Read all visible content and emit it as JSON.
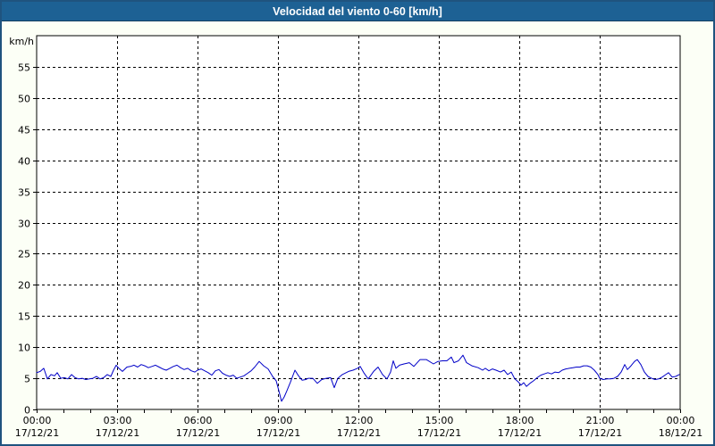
{
  "window": {
    "title": "Velocidad del viento 0-60 [km/h]"
  },
  "colors": {
    "titlebar_bg": "#1d6194",
    "titlebar_text": "#ffffff",
    "frame_border": "#1f537f",
    "page_bg": "#fcfff6",
    "plot_bg": "#ffffff",
    "grid_and_axis": "#000000",
    "tick_label_text": "#000000",
    "series_line": "#0000c8"
  },
  "chart_data": {
    "type": "line",
    "title": "Velocidad del viento 0-60 [km/h]",
    "xlabel": "",
    "ylabel": "km/h",
    "ylim": [
      0,
      60
    ],
    "ytick_step": 5,
    "yticks": [
      0,
      5,
      10,
      15,
      20,
      25,
      30,
      35,
      40,
      45,
      50,
      55
    ],
    "grid": "dashed",
    "legend_position": "none",
    "x_unit": "minutes_from_start",
    "xlim": [
      0,
      1440
    ],
    "x_minor_tick_every_minutes": 60,
    "x_major_ticks": [
      {
        "minutes": 0,
        "time": "00:00",
        "date": "17/12/21"
      },
      {
        "minutes": 180,
        "time": "03:00",
        "date": "17/12/21"
      },
      {
        "minutes": 360,
        "time": "06:00",
        "date": "17/12/21"
      },
      {
        "minutes": 540,
        "time": "09:00",
        "date": "17/12/21"
      },
      {
        "minutes": 720,
        "time": "12:00",
        "date": "17/12/21"
      },
      {
        "minutes": 900,
        "time": "15:00",
        "date": "17/12/21"
      },
      {
        "minutes": 1080,
        "time": "18:00",
        "date": "17/12/21"
      },
      {
        "minutes": 1260,
        "time": "21:00",
        "date": "17/12/21"
      },
      {
        "minutes": 1440,
        "time": "00:00",
        "date": "18/12/21"
      }
    ],
    "series": [
      {
        "name": "Velocidad del viento",
        "color": "#0000c8",
        "points": [
          [
            0,
            5.9
          ],
          [
            8,
            6.1
          ],
          [
            16,
            6.6
          ],
          [
            24,
            4.9
          ],
          [
            32,
            5.6
          ],
          [
            40,
            5.4
          ],
          [
            46,
            5.9
          ],
          [
            54,
            5.0
          ],
          [
            62,
            5.1
          ],
          [
            70,
            4.9
          ],
          [
            78,
            5.6
          ],
          [
            86,
            5.1
          ],
          [
            94,
            4.9
          ],
          [
            102,
            5.0
          ],
          [
            110,
            4.8
          ],
          [
            118,
            4.9
          ],
          [
            126,
            5.0
          ],
          [
            134,
            5.3
          ],
          [
            142,
            4.9
          ],
          [
            150,
            5.1
          ],
          [
            158,
            5.6
          ],
          [
            166,
            5.3
          ],
          [
            172,
            6.3
          ],
          [
            178,
            7.1
          ],
          [
            184,
            6.6
          ],
          [
            192,
            6.1
          ],
          [
            202,
            6.8
          ],
          [
            210,
            6.9
          ],
          [
            218,
            7.1
          ],
          [
            226,
            6.8
          ],
          [
            234,
            7.2
          ],
          [
            242,
            7.0
          ],
          [
            250,
            6.7
          ],
          [
            258,
            6.9
          ],
          [
            266,
            7.1
          ],
          [
            274,
            6.8
          ],
          [
            282,
            6.5
          ],
          [
            290,
            6.3
          ],
          [
            298,
            6.6
          ],
          [
            306,
            6.9
          ],
          [
            314,
            7.1
          ],
          [
            322,
            6.7
          ],
          [
            330,
            6.4
          ],
          [
            338,
            6.6
          ],
          [
            346,
            6.2
          ],
          [
            354,
            6.0
          ],
          [
            360,
            6.3
          ],
          [
            368,
            6.5
          ],
          [
            376,
            6.2
          ],
          [
            384,
            5.9
          ],
          [
            392,
            5.5
          ],
          [
            400,
            6.2
          ],
          [
            408,
            6.4
          ],
          [
            416,
            5.8
          ],
          [
            424,
            5.5
          ],
          [
            432,
            5.3
          ],
          [
            440,
            5.5
          ],
          [
            448,
            5.0
          ],
          [
            456,
            5.2
          ],
          [
            464,
            5.4
          ],
          [
            472,
            5.8
          ],
          [
            480,
            6.2
          ],
          [
            488,
            6.8
          ],
          [
            498,
            7.7
          ],
          [
            508,
            7.0
          ],
          [
            518,
            6.5
          ],
          [
            528,
            5.3
          ],
          [
            536,
            4.6
          ],
          [
            542,
            3.0
          ],
          [
            548,
            1.3
          ],
          [
            554,
            2.0
          ],
          [
            560,
            3.0
          ],
          [
            568,
            4.4
          ],
          [
            578,
            6.3
          ],
          [
            586,
            5.4
          ],
          [
            594,
            4.7
          ],
          [
            602,
            4.8
          ],
          [
            608,
            5.0
          ],
          [
            618,
            5.0
          ],
          [
            628,
            4.2
          ],
          [
            638,
            4.8
          ],
          [
            648,
            5.0
          ],
          [
            658,
            5.1
          ],
          [
            666,
            3.5
          ],
          [
            674,
            5.0
          ],
          [
            684,
            5.6
          ],
          [
            698,
            6.1
          ],
          [
            708,
            6.3
          ],
          [
            718,
            6.6
          ],
          [
            724,
            6.9
          ],
          [
            732,
            5.9
          ],
          [
            742,
            4.9
          ],
          [
            754,
            6.1
          ],
          [
            764,
            6.8
          ],
          [
            774,
            5.6
          ],
          [
            784,
            4.9
          ],
          [
            792,
            6.0
          ],
          [
            798,
            7.8
          ],
          [
            804,
            6.6
          ],
          [
            812,
            7.1
          ],
          [
            822,
            7.3
          ],
          [
            834,
            7.5
          ],
          [
            844,
            6.9
          ],
          [
            858,
            8.0
          ],
          [
            872,
            8.0
          ],
          [
            888,
            7.3
          ],
          [
            898,
            7.7
          ],
          [
            908,
            7.8
          ],
          [
            918,
            7.8
          ],
          [
            928,
            8.4
          ],
          [
            934,
            7.5
          ],
          [
            944,
            7.8
          ],
          [
            954,
            8.7
          ],
          [
            962,
            7.5
          ],
          [
            974,
            7.0
          ],
          [
            988,
            6.7
          ],
          [
            998,
            6.3
          ],
          [
            1004,
            6.6
          ],
          [
            1012,
            6.2
          ],
          [
            1020,
            6.5
          ],
          [
            1028,
            6.3
          ],
          [
            1038,
            6.0
          ],
          [
            1046,
            6.3
          ],
          [
            1054,
            5.6
          ],
          [
            1062,
            6.0
          ],
          [
            1070,
            4.9
          ],
          [
            1078,
            4.4
          ],
          [
            1084,
            3.9
          ],
          [
            1090,
            4.3
          ],
          [
            1096,
            3.7
          ],
          [
            1104,
            4.2
          ],
          [
            1112,
            4.6
          ],
          [
            1120,
            5.1
          ],
          [
            1128,
            5.5
          ],
          [
            1136,
            5.7
          ],
          [
            1144,
            5.9
          ],
          [
            1152,
            5.7
          ],
          [
            1160,
            6.0
          ],
          [
            1168,
            5.9
          ],
          [
            1176,
            6.3
          ],
          [
            1184,
            6.5
          ],
          [
            1192,
            6.6
          ],
          [
            1200,
            6.7
          ],
          [
            1208,
            6.8
          ],
          [
            1216,
            6.8
          ],
          [
            1224,
            7.0
          ],
          [
            1232,
            7.0
          ],
          [
            1240,
            6.8
          ],
          [
            1248,
            6.3
          ],
          [
            1256,
            5.6
          ],
          [
            1260,
            5.0
          ],
          [
            1268,
            4.8
          ],
          [
            1276,
            4.9
          ],
          [
            1284,
            4.9
          ],
          [
            1292,
            5.0
          ],
          [
            1300,
            5.3
          ],
          [
            1308,
            6.0
          ],
          [
            1316,
            7.2
          ],
          [
            1322,
            6.4
          ],
          [
            1330,
            7.0
          ],
          [
            1338,
            7.7
          ],
          [
            1344,
            8.0
          ],
          [
            1352,
            7.2
          ],
          [
            1360,
            6.0
          ],
          [
            1368,
            5.3
          ],
          [
            1376,
            5.0
          ],
          [
            1384,
            4.8
          ],
          [
            1392,
            4.9
          ],
          [
            1400,
            5.2
          ],
          [
            1408,
            5.6
          ],
          [
            1414,
            5.9
          ],
          [
            1422,
            5.2
          ],
          [
            1430,
            5.3
          ],
          [
            1438,
            5.6
          ]
        ]
      }
    ]
  }
}
